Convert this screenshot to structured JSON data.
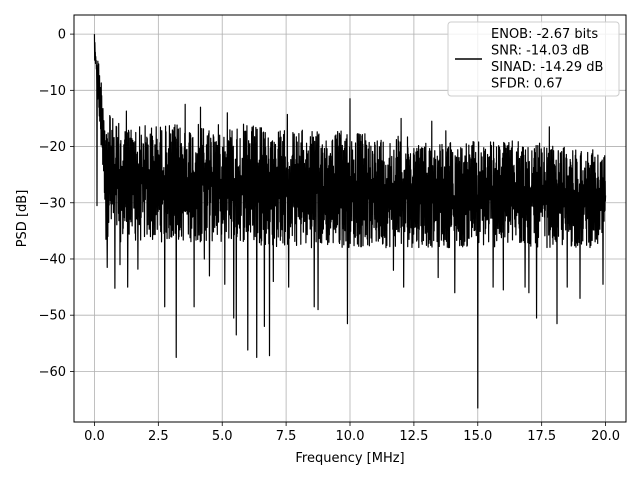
{
  "chart_data": {
    "type": "line",
    "title": "",
    "xlabel": "Frequency [MHz]",
    "ylabel": "PSD [dB]",
    "xlim": [
      -0.8,
      20.8
    ],
    "ylim": [
      -69,
      3.4
    ],
    "xticks": [
      0.0,
      2.5,
      5.0,
      7.5,
      10.0,
      12.5,
      15.0,
      17.5,
      20.0
    ],
    "xtick_labels": [
      "0.0",
      "2.5",
      "5.0",
      "7.5",
      "10.0",
      "12.5",
      "15.0",
      "17.5",
      "20.0"
    ],
    "yticks": [
      0,
      -10,
      -20,
      -30,
      -40,
      -50,
      -60
    ],
    "ytick_labels": [
      "0",
      "−10",
      "−20",
      "−30",
      "−40",
      "−50",
      "−60"
    ],
    "grid": true,
    "legend_position": "top-right",
    "legend_entries": [
      "ENOB: -2.67 bits",
      "SNR: -14.03 dB",
      "SINAD: -14.29 dB",
      "SFDR: 0.67"
    ],
    "series": [
      {
        "color": "#000000",
        "x_start": 0.0,
        "x_end": 20.0,
        "envelope": {
          "x": [
            0.0,
            0.5,
            1.0,
            2.0,
            3.0,
            4.0,
            5.0,
            6.0,
            7.0,
            8.0,
            9.0,
            10.0,
            11.0,
            12.0,
            13.0,
            14.0,
            15.0,
            16.0,
            17.0,
            18.0,
            19.0,
            20.0
          ],
          "upper": [
            0,
            -14,
            -16,
            -16,
            -16,
            -16,
            -16,
            -16,
            -17,
            -17,
            -17,
            -17,
            -18,
            -18,
            -19,
            -19,
            -19,
            -19,
            -19,
            -20,
            -20,
            -21
          ],
          "lower": [
            -5,
            -36,
            -37,
            -37,
            -37,
            -37,
            -37,
            -37,
            -38,
            -38,
            -38,
            -38,
            -38,
            -38,
            -38,
            -38,
            -38,
            -38,
            -38,
            -38,
            -38,
            -38
          ]
        },
        "peaks": [
          {
            "x": 0.0,
            "y": 0.0
          },
          {
            "x": 0.02,
            "y": -1.5
          },
          {
            "x": 0.05,
            "y": -4
          },
          {
            "x": 0.1,
            "y": -8
          },
          {
            "x": 0.15,
            "y": -11
          },
          {
            "x": 0.25,
            "y": -13
          },
          {
            "x": 0.6,
            "y": -14.5
          },
          {
            "x": 1.25,
            "y": -13.7
          },
          {
            "x": 3.55,
            "y": -12.5
          },
          {
            "x": 4.15,
            "y": -13
          },
          {
            "x": 5.2,
            "y": -14
          },
          {
            "x": 7.55,
            "y": -14.3
          },
          {
            "x": 10.0,
            "y": -11.5
          },
          {
            "x": 12.0,
            "y": -15
          },
          {
            "x": 13.2,
            "y": -15.5
          },
          {
            "x": 13.75,
            "y": -17.2
          },
          {
            "x": 17.8,
            "y": -16.5
          }
        ],
        "dips": [
          {
            "x": 0.1,
            "y": -30.5
          },
          {
            "x": 0.45,
            "y": -36.5
          },
          {
            "x": 0.5,
            "y": -41.5
          },
          {
            "x": 0.8,
            "y": -45.2
          },
          {
            "x": 1.0,
            "y": -41
          },
          {
            "x": 1.3,
            "y": -45
          },
          {
            "x": 1.7,
            "y": -41.8
          },
          {
            "x": 2.75,
            "y": -48.5
          },
          {
            "x": 3.2,
            "y": -57.5
          },
          {
            "x": 3.9,
            "y": -48.5
          },
          {
            "x": 4.3,
            "y": -40
          },
          {
            "x": 4.5,
            "y": -43
          },
          {
            "x": 5.1,
            "y": -44.5
          },
          {
            "x": 5.45,
            "y": -50.5
          },
          {
            "x": 5.55,
            "y": -53.5
          },
          {
            "x": 6.0,
            "y": -56.2
          },
          {
            "x": 6.35,
            "y": -57.5
          },
          {
            "x": 6.65,
            "y": -52
          },
          {
            "x": 6.85,
            "y": -57.2
          },
          {
            "x": 7.0,
            "y": -44
          },
          {
            "x": 7.6,
            "y": -45
          },
          {
            "x": 8.6,
            "y": -48.5
          },
          {
            "x": 8.75,
            "y": -49
          },
          {
            "x": 9.9,
            "y": -51.5
          },
          {
            "x": 11.7,
            "y": -42
          },
          {
            "x": 12.1,
            "y": -45
          },
          {
            "x": 13.45,
            "y": -43.3
          },
          {
            "x": 14.1,
            "y": -46
          },
          {
            "x": 15.0,
            "y": -66.5
          },
          {
            "x": 15.6,
            "y": -45
          },
          {
            "x": 16.0,
            "y": -45.5
          },
          {
            "x": 16.85,
            "y": -45
          },
          {
            "x": 17.0,
            "y": -46
          },
          {
            "x": 17.3,
            "y": -50.5
          },
          {
            "x": 18.1,
            "y": -51.5
          },
          {
            "x": 18.5,
            "y": -45
          },
          {
            "x": 19.0,
            "y": -47
          },
          {
            "x": 19.9,
            "y": -44.5
          }
        ]
      }
    ]
  }
}
